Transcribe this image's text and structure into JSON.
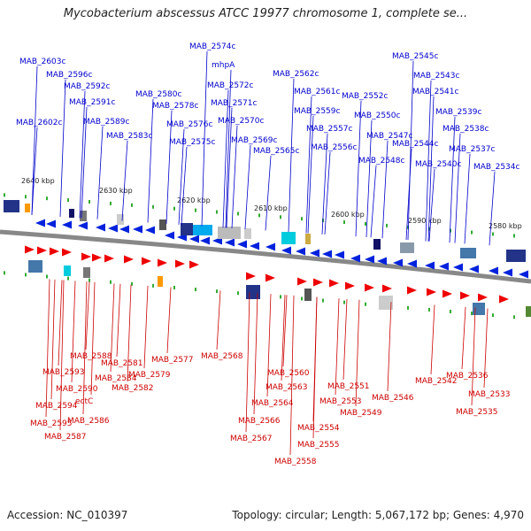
{
  "title": "Mycobacterium abscessus ATCC 19977 chromosome 1, complete se...",
  "footer": {
    "accession": "Accession: NC_010397",
    "summary": "Topology: circular; Length: 5,067,172 bp; Genes: 4,970"
  },
  "colors": {
    "forward_label": "#0000cc",
    "reverse_label": "#cc0000",
    "forward_gene": "#0022dd",
    "reverse_gene": "#ee0000",
    "backbone": "#888888",
    "tick": "#33aa33"
  },
  "scale_labels": [
    "2640 kbp",
    "2630 kbp",
    "2620 kbp",
    "2610 kbp",
    "2600 kbp",
    "2590 kbp",
    "2580 kbp"
  ],
  "forward_labels": [
    "MAB_2603c",
    "MAB_2596c",
    "MAB_2592c",
    "MAB_2591c",
    "MAB_2589c",
    "MAB_2602c",
    "MAB_2574c",
    "mhpA",
    "MAB_2572c",
    "MAB_2580c",
    "MAB_2578c",
    "MAB_2571c",
    "MAB_2576c",
    "MAB_2570c",
    "MAB_2583c",
    "MAB_2575c",
    "MAB_2569c",
    "MAB_2562c",
    "MAB_2561c",
    "MAB_2559c",
    "MAB_2557c",
    "MAB_2565c",
    "MAB_2556c",
    "MAB_2545c",
    "MAB_2543c",
    "MAB_2552c",
    "MAB_2541c",
    "MAB_2550c",
    "MAB_2539c",
    "MAB_2547c",
    "MAB_2538c",
    "MAB_2544c",
    "MAB_2537c",
    "MAB_2548c",
    "MAB_2540c",
    "MAB_2534c"
  ],
  "reverse_labels": [
    "MAB_2588",
    "MAB_2581",
    "MAB_2577",
    "MAB_2568",
    "MAB_2593",
    "MAB_2584",
    "MAB_2579",
    "MAB_2560",
    "MAB_2590",
    "MAB_2582",
    "MAB_2563",
    "MAB_2551",
    "MAB_2542",
    "MAB_2536",
    "MAB_2594",
    "ectC",
    "MAB_2564",
    "MAB_2553",
    "MAB_2546",
    "MAB_2533",
    "MAB_2595",
    "MAB_2586",
    "MAB_2566",
    "MAB_2549",
    "MAB_2535",
    "MAB_2587",
    "MAB_2554",
    "MAB_2567",
    "MAB_2555",
    "MAB_2558"
  ]
}
